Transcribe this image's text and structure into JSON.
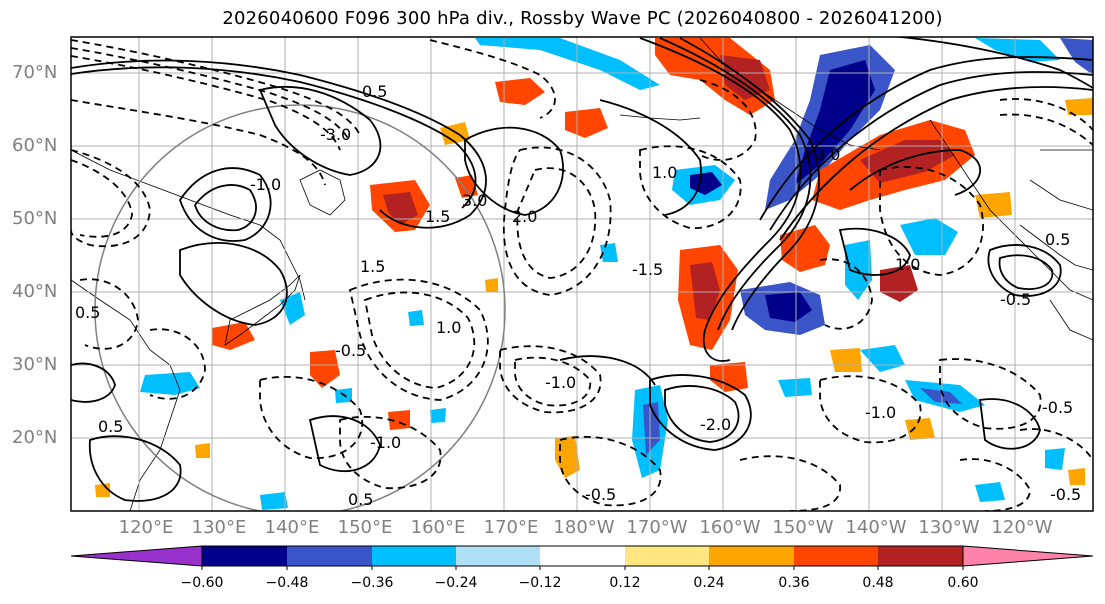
{
  "title": "2026040600 F096 300 hPa div., Rossby Wave PC (2026040800 - 2026041200)",
  "lat_labels": [
    "70°N",
    "60°N",
    "50°N",
    "40°N",
    "30°N",
    "20°N"
  ],
  "lon_labels": [
    "120°E",
    "130°E",
    "140°E",
    "150°E",
    "160°E",
    "170°E",
    "180°W",
    "170°W",
    "160°W",
    "150°W",
    "140°W",
    "130°W",
    "120°W"
  ],
  "colorbar": {
    "ticks": [
      "−0.60",
      "−0.48",
      "−0.36",
      "−0.24",
      "−0.12",
      "0.12",
      "0.24",
      "0.36",
      "0.48",
      "0.60"
    ],
    "colors": [
      "#9932cc",
      "#00008b",
      "#3a55c8",
      "#00bfff",
      "#b0e0f6",
      "#ffffff",
      "#ffe680",
      "#ffa500",
      "#ff4500",
      "#b22222",
      "#ff82ab"
    ]
  },
  "contour_labels": [
    "-0.5",
    "0.5",
    "-1.0",
    "1.0",
    "1.5",
    "-1.5",
    "2.0",
    "3.0",
    "-2.0",
    "-3.0"
  ]
}
